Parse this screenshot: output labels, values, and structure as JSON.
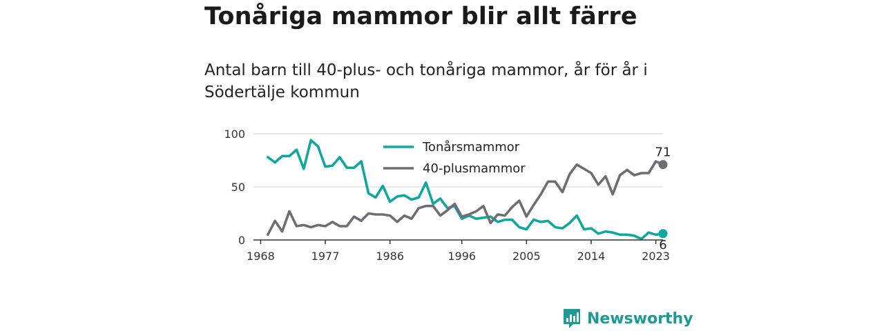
{
  "header": {
    "title": "Tonåriga mammor blir allt färre",
    "subtitle": "Antal barn till 40-plus- och tonåriga mammor, år för år i Södertälje kommun"
  },
  "brand": {
    "name": "Newsworthy",
    "logo_icon": "bar-chart-badge-icon",
    "color": "#1c9a93"
  },
  "colors": {
    "teen": "#0fa79b",
    "forty": "#6d6d73",
    "grid": "#d9d9d9",
    "axis": "#333333"
  },
  "chart_data": {
    "type": "line",
    "title": "Tonåriga mammor blir allt färre",
    "subtitle": "Antal barn till 40-plus- och tonåriga mammor, år för år i Södertälje kommun",
    "xlabel": "",
    "ylabel": "",
    "xlim": [
      1967,
      2024
    ],
    "ylim": [
      0,
      100
    ],
    "x_ticks": [
      1968,
      1977,
      1986,
      1996,
      2005,
      2014,
      2023
    ],
    "y_ticks": [
      0,
      50,
      100
    ],
    "grid": "horizontal",
    "legend_position": "top-center",
    "x": [
      1969,
      1970,
      1971,
      1972,
      1973,
      1974,
      1975,
      1976,
      1977,
      1978,
      1979,
      1980,
      1981,
      1982,
      1983,
      1984,
      1985,
      1986,
      1987,
      1988,
      1989,
      1990,
      1991,
      1992,
      1993,
      1994,
      1995,
      1996,
      1997,
      1998,
      1999,
      2000,
      2001,
      2002,
      2003,
      2004,
      2005,
      2006,
      2007,
      2008,
      2009,
      2010,
      2011,
      2012,
      2013,
      2014,
      2015,
      2016,
      2017,
      2018,
      2019,
      2020,
      2021,
      2022,
      2023,
      2024
    ],
    "series": [
      {
        "name": "Tonårsmammor",
        "values": [
          78,
          73,
          79,
          79,
          85,
          67,
          94,
          88,
          69,
          70,
          78,
          68,
          68,
          74,
          44,
          40,
          51,
          36,
          41,
          42,
          38,
          40,
          54,
          34,
          39,
          30,
          32,
          20,
          23,
          20,
          21,
          22,
          17,
          19,
          19,
          12,
          10,
          19,
          17,
          18,
          12,
          11,
          16,
          23,
          10,
          11,
          6,
          8,
          7,
          5,
          5,
          4,
          1,
          7,
          5,
          6
        ]
      },
      {
        "name": "40-plusmammor",
        "values": [
          5,
          18,
          8,
          27,
          13,
          14,
          12,
          14,
          13,
          17,
          13,
          13,
          22,
          18,
          25,
          24,
          24,
          23,
          17,
          23,
          20,
          30,
          32,
          32,
          23,
          28,
          34,
          22,
          24,
          27,
          32,
          16,
          24,
          23,
          31,
          37,
          22,
          33,
          43,
          55,
          55,
          45,
          62,
          71,
          67,
          63,
          52,
          60,
          43,
          61,
          66,
          61,
          63,
          63,
          74,
          71
        ]
      }
    ],
    "end_labels": [
      {
        "series": "40-plusmammor",
        "text": "71"
      },
      {
        "series": "Tonårsmammor",
        "text": "6"
      }
    ]
  }
}
